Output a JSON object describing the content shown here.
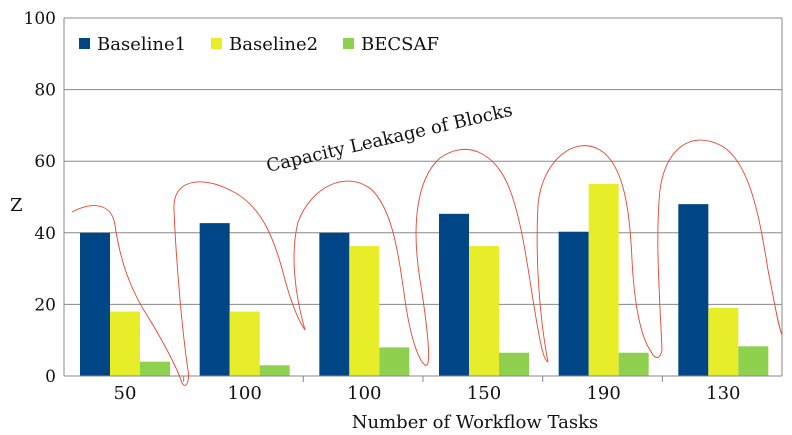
{
  "chart_data": {
    "type": "bar",
    "title": "",
    "xlabel": "Number of Workflow Tasks",
    "ylabel": "Z",
    "ylim": [
      0,
      100
    ],
    "yticks": [
      0,
      20,
      40,
      60,
      80,
      100
    ],
    "grid": true,
    "legend_position": "top-left",
    "categories": [
      "50",
      "100",
      "100",
      "150",
      "190",
      "130"
    ],
    "series": [
      {
        "name": "Baseline1",
        "color": "#004586",
        "values": [
          40,
          42.7,
          40,
          45.3,
          40.3,
          48
        ]
      },
      {
        "name": "Baseline2",
        "color": "#e8ed2a",
        "values": [
          18,
          18,
          36.3,
          36.3,
          53.7,
          19
        ]
      },
      {
        "name": "BECSAF",
        "color": "#8fd14f",
        "values": [
          4,
          3,
          8,
          6.5,
          6.5,
          8.3
        ]
      }
    ],
    "annotations": [
      {
        "text": "Capacity Leakage of Blocks",
        "style": "handwritten"
      }
    ]
  },
  "colors": {
    "axis": "#888888",
    "grid": "#888888",
    "handwriting": "#e8432c"
  }
}
